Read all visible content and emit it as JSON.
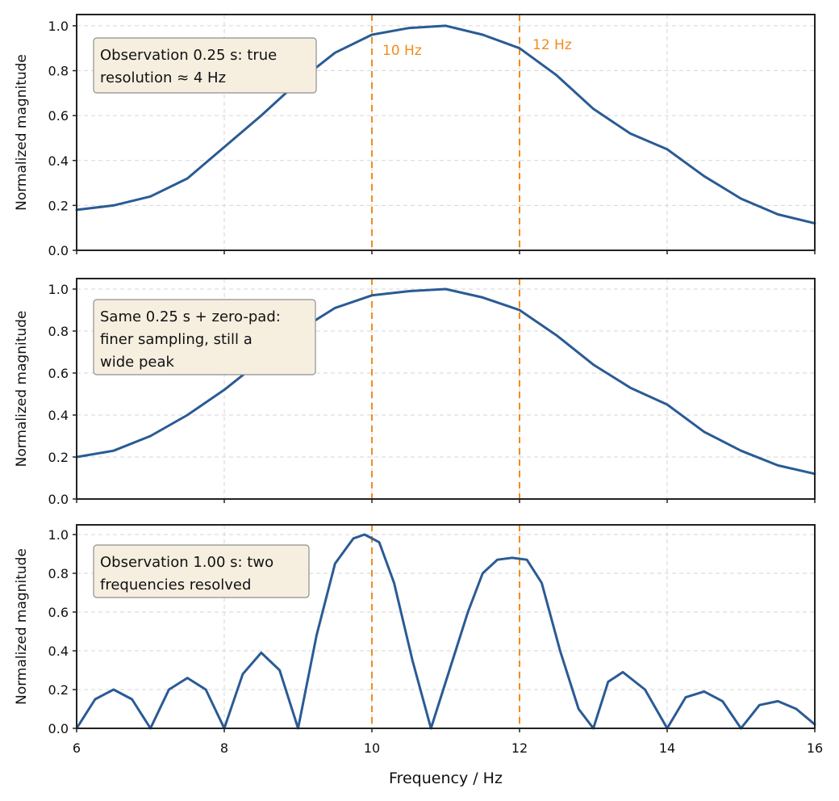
{
  "colors": {
    "curve": "#2a5b94",
    "marker": "#f08c1d",
    "annotation_bg": "#f6efe0"
  },
  "chart_data": [
    {
      "type": "line",
      "title": "",
      "xlabel": "",
      "ylabel": "Normalized magnitude",
      "xlim": [
        6,
        16
      ],
      "ylim": [
        0,
        1.05
      ],
      "xticks": [
        6,
        8,
        10,
        12,
        14,
        16
      ],
      "yticks": [
        "0.0",
        "0.2",
        "0.4",
        "0.6",
        "0.8",
        "1.0"
      ],
      "grid": true,
      "annotation": [
        "Observation 0.25 s: true",
        "resolution ≈ 4 Hz"
      ],
      "markers": [
        {
          "x": 10,
          "label": "10 Hz"
        },
        {
          "x": 12,
          "label": "12 Hz"
        }
      ],
      "series": [
        {
          "x": [
            6,
            6.5,
            7,
            7.5,
            8,
            8.5,
            9,
            9.5,
            10,
            10.5,
            11,
            11.5,
            12,
            12.5,
            13,
            13.5,
            14,
            14.5,
            15,
            15.5,
            16
          ],
          "values": [
            0.18,
            0.2,
            0.24,
            0.32,
            0.46,
            0.6,
            0.75,
            0.88,
            0.96,
            0.99,
            1.0,
            0.96,
            0.9,
            0.78,
            0.63,
            0.52,
            0.45,
            0.33,
            0.23,
            0.16,
            0.12
          ]
        }
      ]
    },
    {
      "type": "line",
      "title": "",
      "xlabel": "",
      "ylabel": "Normalized magnitude",
      "xlim": [
        6,
        16
      ],
      "ylim": [
        0,
        1.05
      ],
      "xticks": [
        6,
        8,
        10,
        12,
        14,
        16
      ],
      "yticks": [
        "0.0",
        "0.2",
        "0.4",
        "0.6",
        "0.8",
        "1.0"
      ],
      "grid": true,
      "annotation": [
        "Same 0.25 s + zero-pad:",
        "finer sampling, still a",
        "wide peak"
      ],
      "markers": [
        {
          "x": 10,
          "label": ""
        },
        {
          "x": 12,
          "label": ""
        }
      ],
      "series": [
        {
          "x": [
            6,
            6.5,
            7,
            7.5,
            8,
            8.5,
            9,
            9.5,
            10,
            10.5,
            11,
            11.5,
            12,
            12.5,
            13,
            13.5,
            14,
            14.5,
            15,
            15.5,
            16
          ],
          "values": [
            0.2,
            0.23,
            0.3,
            0.4,
            0.52,
            0.66,
            0.8,
            0.91,
            0.97,
            0.99,
            1.0,
            0.96,
            0.9,
            0.78,
            0.64,
            0.53,
            0.45,
            0.32,
            0.23,
            0.16,
            0.12
          ]
        }
      ]
    },
    {
      "type": "line",
      "title": "",
      "xlabel": "Frequency / Hz",
      "ylabel": "Normalized magnitude",
      "xlim": [
        6,
        16
      ],
      "ylim": [
        0,
        1.05
      ],
      "xticks": [
        6,
        8,
        10,
        12,
        14,
        16
      ],
      "yticks": [
        "0.0",
        "0.2",
        "0.4",
        "0.6",
        "0.8",
        "1.0"
      ],
      "grid": true,
      "annotation": [
        "Observation 1.00 s: two",
        "frequencies resolved"
      ],
      "markers": [
        {
          "x": 10,
          "label": ""
        },
        {
          "x": 12,
          "label": ""
        }
      ],
      "series": [
        {
          "x": [
            6,
            6.25,
            6.5,
            6.75,
            7,
            7.25,
            7.5,
            7.75,
            8,
            8.25,
            8.5,
            8.75,
            9,
            9.25,
            9.5,
            9.75,
            9.9,
            10.1,
            10.3,
            10.55,
            10.8,
            11.05,
            11.3,
            11.5,
            11.7,
            11.9,
            12.1,
            12.3,
            12.55,
            12.8,
            13,
            13.2,
            13.4,
            13.7,
            14,
            14.25,
            14.5,
            14.75,
            15,
            15.25,
            15.5,
            15.75,
            16
          ],
          "values": [
            0.0,
            0.15,
            0.2,
            0.15,
            0.0,
            0.2,
            0.26,
            0.2,
            0.0,
            0.28,
            0.39,
            0.3,
            0.0,
            0.48,
            0.85,
            0.98,
            1.0,
            0.96,
            0.75,
            0.35,
            0.0,
            0.3,
            0.6,
            0.8,
            0.87,
            0.88,
            0.87,
            0.75,
            0.4,
            0.1,
            0.0,
            0.24,
            0.29,
            0.2,
            0.0,
            0.16,
            0.19,
            0.14,
            0.0,
            0.12,
            0.14,
            0.1,
            0.02
          ]
        }
      ]
    }
  ]
}
